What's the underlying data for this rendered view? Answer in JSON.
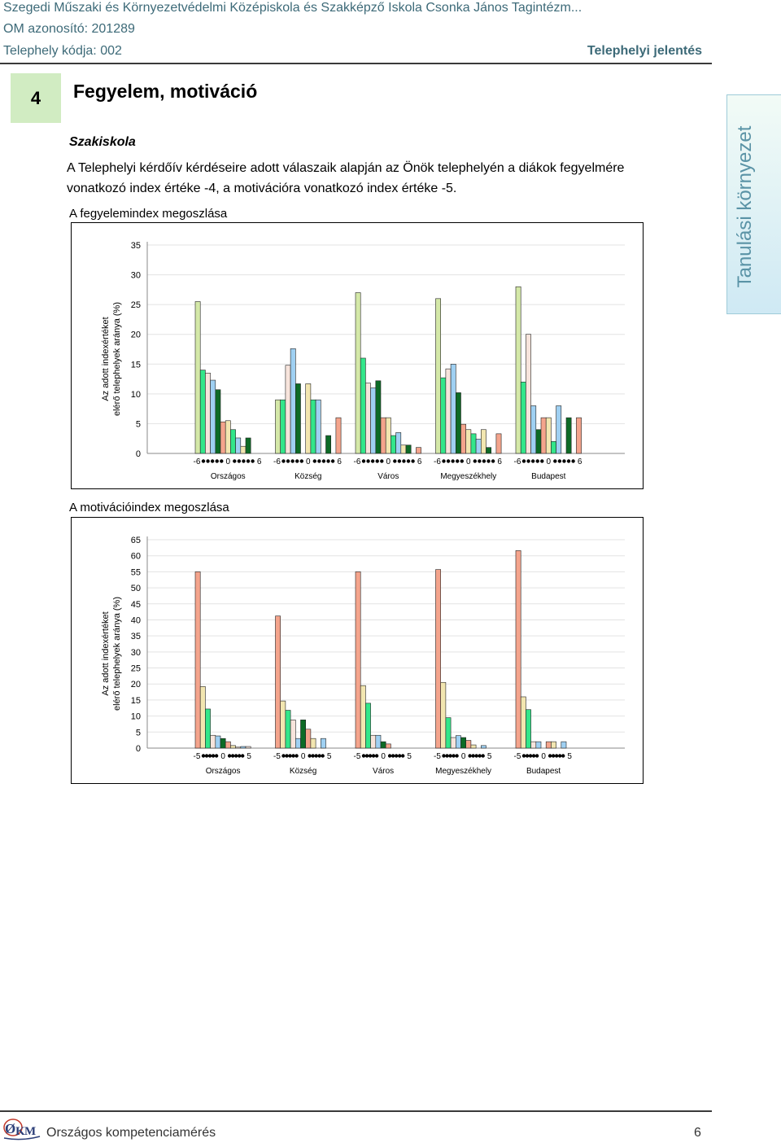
{
  "header": {
    "school": "Szegedi Műszaki és Környezetvédelmi Középiskola és Szakképző Iskola Csonka János Tagintézm...",
    "om_id": "OM azonosító: 201289",
    "site_code": "Telephely kódja: 002",
    "report_type": "Telephelyi jelentés"
  },
  "section": {
    "number": "4",
    "title": "Fegyelem, motiváció",
    "subhead": "Szakiskola",
    "paragraph": "A Telephelyi kérdőív kérdéseire adott válaszaik alapján az Önök telephelyén a diákok fegyelmére vonatkozó index értéke -4, a motivációra vonatkozó index értéke -5."
  },
  "side_tab": "Tanulási környezet",
  "captions": {
    "chart1": "A fegyelemindex megoszlása",
    "chart2": "A motivációindex megoszlása"
  },
  "footer": {
    "text": "Országos kompetenciamérés",
    "page": "6",
    "logo_text": "OKM"
  },
  "chart_data": [
    {
      "type": "bar",
      "title": "A fegyelemindex megoszlása",
      "ylabel": "Az adott indexértéket elérő telephelyek aránya (%)",
      "ylim": [
        0,
        35
      ],
      "yticks": [
        0,
        5,
        10,
        15,
        20,
        25,
        30,
        35
      ],
      "groups": [
        "Országos",
        "Község",
        "Város",
        "Megyeszékhely",
        "Budapest"
      ],
      "index_range": [
        -6,
        6
      ],
      "tick_labels": [
        "-6",
        "0",
        "6"
      ],
      "bar_colors": [
        "#d4e8a8",
        "#33e68a",
        "#f7e4dc",
        "#9fd0f2",
        "#0d6b26",
        "#f4a48c",
        "#f2e6b0",
        "#33e68a",
        "#9fd0f2",
        "#f2e6b0",
        "#0d6b26",
        "#f7e4dc",
        "#f4a48c"
      ],
      "series": [
        {
          "name": "Országos",
          "values": [
            25.5,
            14,
            13.5,
            12.3,
            10.7,
            5.3,
            5.5,
            4,
            2.6,
            1.2,
            2.6,
            null,
            null
          ]
        },
        {
          "name": "Község",
          "values": [
            9,
            9,
            14.8,
            17.6,
            11.7,
            null,
            11.7,
            9,
            9,
            null,
            3,
            null,
            6
          ]
        },
        {
          "name": "Város",
          "values": [
            27,
            16,
            11.8,
            11,
            12.2,
            6,
            6,
            3,
            3.5,
            1.4,
            1.4,
            null,
            1
          ]
        },
        {
          "name": "Megyeszékhely",
          "values": [
            26,
            12.7,
            14.2,
            15,
            10.2,
            4.9,
            4,
            3.3,
            2.4,
            4,
            1,
            null,
            3.3
          ]
        },
        {
          "name": "Budapest",
          "values": [
            28,
            12,
            20,
            8,
            4,
            6,
            6,
            2,
            8,
            null,
            6,
            null,
            6
          ]
        }
      ]
    },
    {
      "type": "bar",
      "title": "A motivációindex megoszlása",
      "ylabel": "Az adott indexértéket elérő telephelyek aránya (%)",
      "ylim": [
        0,
        65
      ],
      "yticks": [
        0,
        5,
        10,
        15,
        20,
        25,
        30,
        35,
        40,
        45,
        50,
        55,
        60,
        65
      ],
      "groups": [
        "Országos",
        "Község",
        "Város",
        "Megyeszékhely",
        "Budapest"
      ],
      "index_range": [
        -5,
        5
      ],
      "tick_labels": [
        "-5",
        "0",
        "5"
      ],
      "bar_colors": [
        "#f4a48c",
        "#f2e6b0",
        "#33e68a",
        "#f7e4dc",
        "#9fd0f2",
        "#0d6b26",
        "#f4a48c",
        "#f2e6b0",
        "#f7e4dc",
        "#9fd0f2",
        "#f7e4dc"
      ],
      "series": [
        {
          "name": "Országos",
          "values": [
            55,
            19.2,
            12.2,
            4,
            3.8,
            3,
            2,
            0.8,
            0.3,
            0.5,
            0.5
          ]
        },
        {
          "name": "Község",
          "values": [
            41.2,
            14.7,
            11.8,
            8.8,
            3,
            8.8,
            5.9,
            3,
            null,
            3,
            null
          ]
        },
        {
          "name": "Város",
          "values": [
            55,
            19.5,
            14,
            4,
            4,
            2,
            1.3,
            null,
            null,
            null,
            null
          ]
        },
        {
          "name": "Megyeszékhely",
          "values": [
            55.7,
            20.5,
            9.5,
            3.3,
            3.9,
            3.3,
            2.4,
            1,
            null,
            0.8,
            null
          ]
        },
        {
          "name": "Budapest",
          "values": [
            61.6,
            16,
            12,
            2,
            2,
            null,
            2,
            2,
            null,
            2,
            null
          ]
        }
      ]
    }
  ]
}
